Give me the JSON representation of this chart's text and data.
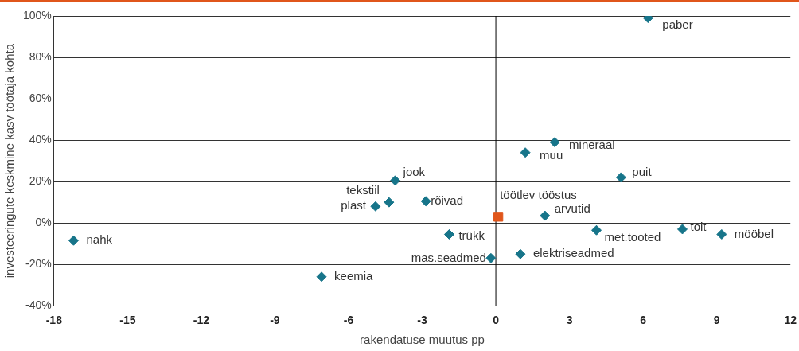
{
  "chart_data": {
    "type": "scatter",
    "xlabel": "rakendatuse muutus pp",
    "ylabel": "investeeringute keskmine kasv töötaja kohta",
    "xlim": [
      -18,
      12
    ],
    "xticks": [
      -18,
      -15,
      -12,
      -9,
      -6,
      -3,
      0,
      3,
      6,
      9,
      12
    ],
    "ylim": [
      -40,
      100
    ],
    "yticks": [
      {
        "value": -40,
        "label": "-40%"
      },
      {
        "value": -20,
        "label": "-20%"
      },
      {
        "value": 0,
        "label": "0%"
      },
      {
        "value": 20,
        "label": "20%"
      },
      {
        "value": 40,
        "label": "40%"
      },
      {
        "value": 60,
        "label": "60%"
      },
      {
        "value": 80,
        "label": "80%"
      },
      {
        "value": 100,
        "label": "100%"
      }
    ],
    "grid": "y",
    "legend": false,
    "marker": "diamond",
    "ref_lines": [
      {
        "axis": "x",
        "value": 0,
        "color": "#000000"
      }
    ],
    "series": [
      {
        "color": "#17758a",
        "x": [
          6.2,
          2.4,
          1.2,
          5.1,
          -4.1,
          -4.35,
          -4.9,
          -2.85,
          2.0,
          4.1,
          7.6,
          9.2,
          -1.9,
          1.0,
          -0.2,
          -7.1,
          -17.2
        ],
        "values": [
          99,
          39,
          34,
          22,
          20.5,
          10,
          8,
          10.5,
          3.5,
          -3.5,
          -3,
          -5.5,
          -5.5,
          -15,
          -17,
          -26,
          -8.5
        ]
      },
      {
        "color": "#e0561b",
        "marker": "square",
        "x": [
          0.1
        ],
        "values": [
          3
        ]
      }
    ],
    "annotations": [
      {
        "text": "paber",
        "x": 6.2,
        "y": 99
      },
      {
        "text": "mineraal",
        "x": 2.4,
        "y": 39
      },
      {
        "text": "muu",
        "x": 1.2,
        "y": 34
      },
      {
        "text": "puit",
        "x": 5.1,
        "y": 22
      },
      {
        "text": "jook",
        "x": -4.1,
        "y": 20.5
      },
      {
        "text": "tekstiil",
        "x": -4.35,
        "y": 10
      },
      {
        "text": "plast",
        "x": -4.9,
        "y": 8
      },
      {
        "text": "rõivad",
        "x": -2.85,
        "y": 10.5
      },
      {
        "text": "arvutid",
        "x": 2.0,
        "y": 3.5
      },
      {
        "text": "met.tooted",
        "x": 4.1,
        "y": -3.5
      },
      {
        "text": "toit",
        "x": 7.6,
        "y": -3
      },
      {
        "text": "mööbel",
        "x": 9.2,
        "y": -5.5
      },
      {
        "text": "trükk",
        "x": -1.9,
        "y": -5.5
      },
      {
        "text": "elektriseadmed",
        "x": 1.0,
        "y": -15
      },
      {
        "text": "mas.seadmed",
        "x": -0.2,
        "y": -17
      },
      {
        "text": "keemia",
        "x": -7.1,
        "y": -26
      },
      {
        "text": "nahk",
        "x": -17.2,
        "y": -8.5
      },
      {
        "text": "töötlev tööstus",
        "x": 0.1,
        "y": 3
      }
    ]
  }
}
